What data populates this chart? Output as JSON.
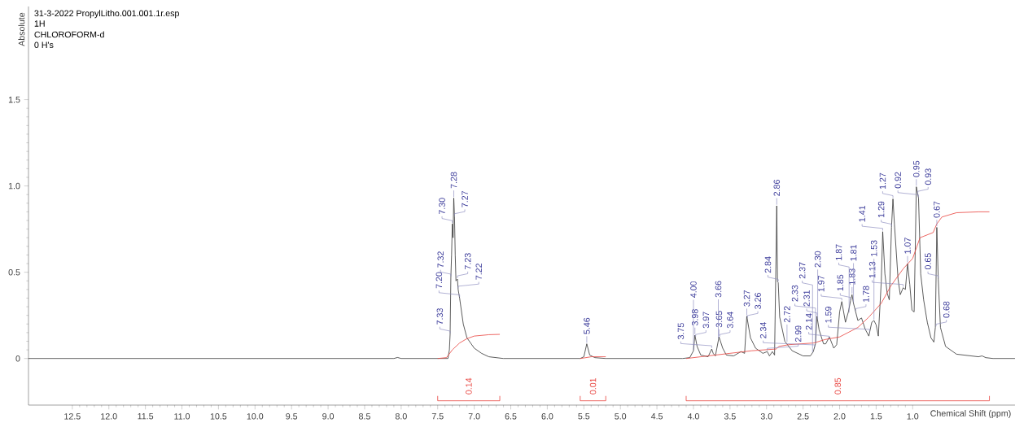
{
  "chart_data": {
    "type": "line",
    "xlabel": "Chemical Shift (ppm)",
    "ylabel": "Absolute",
    "xlim": [
      13.1,
      -0.4
    ],
    "ylim": [
      -0.27,
      2.04
    ],
    "xticks": [
      {
        "value": 12.5,
        "label": "12.5"
      },
      {
        "value": 12,
        "label": "12.0"
      },
      {
        "value": 11.5,
        "label": "11.5"
      },
      {
        "value": 11,
        "label": "11.0"
      },
      {
        "value": 10.5,
        "label": "10.5"
      },
      {
        "value": 10,
        "label": "10.0"
      },
      {
        "value": 9.5,
        "label": "9.5"
      },
      {
        "value": 9,
        "label": "9.0"
      },
      {
        "value": 8.5,
        "label": "8.5"
      },
      {
        "value": 8,
        "label": "8.0"
      },
      {
        "value": 7.5,
        "label": "7.5"
      },
      {
        "value": 7,
        "label": "7.0"
      },
      {
        "value": 6.5,
        "label": "6.5"
      },
      {
        "value": 6,
        "label": "6.0"
      },
      {
        "value": 5.5,
        "label": "5.5"
      },
      {
        "value": 5,
        "label": "5.0"
      },
      {
        "value": 4.5,
        "label": "4.5"
      },
      {
        "value": 4,
        "label": "4.0"
      },
      {
        "value": 3.5,
        "label": "3.5"
      },
      {
        "value": 3,
        "label": "3.0"
      },
      {
        "value": 2.5,
        "label": "2.5"
      },
      {
        "value": 2,
        "label": "2.0"
      },
      {
        "value": 1.5,
        "label": "1.5"
      },
      {
        "value": 1,
        "label": "1.0"
      }
    ],
    "yticks": [
      {
        "value": 0,
        "label": "0"
      },
      {
        "value": 0.5,
        "label": "0.5"
      },
      {
        "value": 1,
        "label": "1.0"
      },
      {
        "value": 1.5,
        "label": "1.5"
      }
    ],
    "grid": false,
    "marker": "none",
    "line_style": "solid",
    "series": [
      {
        "type": "line",
        "color": "#333333",
        "x": [
          13.1,
          8.1,
          8.05,
          8.0,
          7.5,
          7.36,
          7.34,
          7.33,
          7.32,
          7.31,
          7.3,
          7.29,
          7.28,
          7.27,
          7.26,
          7.25,
          7.23,
          7.22,
          7.2,
          7.15,
          7.1,
          7.0,
          6.9,
          6.8,
          6.6,
          5.55,
          5.5,
          5.46,
          5.42,
          5.35,
          5.2,
          4.15,
          4.05,
          4.0,
          3.98,
          3.95,
          3.9,
          3.8,
          3.75,
          3.73,
          3.7,
          3.65,
          3.6,
          3.55,
          3.45,
          3.35,
          3.3,
          3.27,
          3.22,
          3.15,
          3.05,
          2.99,
          2.96,
          2.92,
          2.89,
          2.86,
          2.85,
          2.84,
          2.82,
          2.75,
          2.65,
          2.5,
          2.4,
          2.36,
          2.33,
          2.31,
          2.28,
          2.22,
          2.19,
          2.14,
          2.08,
          2.04,
          2.0,
          1.97,
          1.92,
          1.88,
          1.85,
          1.83,
          1.81,
          1.78,
          1.75,
          1.7,
          1.65,
          1.6,
          1.56,
          1.53,
          1.5,
          1.47,
          1.43,
          1.41,
          1.38,
          1.35,
          1.32,
          1.29,
          1.27,
          1.25,
          1.2,
          1.17,
          1.13,
          1.1,
          1.07,
          1.04,
          1.01,
          0.98,
          0.95,
          0.93,
          0.92,
          0.89,
          0.85,
          0.8,
          0.75,
          0.71,
          0.69,
          0.67,
          0.65,
          0.62,
          0.55,
          0.4,
          0.1,
          0.05,
          0.0,
          -0.1,
          -0.4
        ],
        "values": [
          0,
          0,
          0.006,
          0,
          0,
          0,
          0.05,
          0.14,
          0.47,
          0.6,
          0.78,
          0.7,
          0.93,
          0.82,
          0.6,
          0.45,
          0.46,
          0.4,
          0.35,
          0.2,
          0.12,
          0.06,
          0.03,
          0.01,
          0,
          0,
          0.01,
          0.085,
          0.02,
          0.005,
          0,
          0,
          0.005,
          0.045,
          0.135,
          0.07,
          0.02,
          0.01,
          0.055,
          0.03,
          0.015,
          0.125,
          0.06,
          0.02,
          0.015,
          0.04,
          0.03,
          0.245,
          0.12,
          0.06,
          0.03,
          0.04,
          0.015,
          0.04,
          0.02,
          0.885,
          0.445,
          0.44,
          0.24,
          0.1,
          0.045,
          0.015,
          0.015,
          0.04,
          0.085,
          0.245,
          0.165,
          0.085,
          0.085,
          0.125,
          0.06,
          0.08,
          0.27,
          0.33,
          0.21,
          0.27,
          0.335,
          0.37,
          0.32,
          0.27,
          0.22,
          0.235,
          0.17,
          0.13,
          0.21,
          0.22,
          0.195,
          0.13,
          0.445,
          0.735,
          0.49,
          0.38,
          0.34,
          0.76,
          0.925,
          0.78,
          0.46,
          0.37,
          0.41,
          0.4,
          0.55,
          0.43,
          0.28,
          0.27,
          0.995,
          0.95,
          0.93,
          0.49,
          0.34,
          0.21,
          0.12,
          0.095,
          0.18,
          0.76,
          0.46,
          0.18,
          0.07,
          0.025,
          0.01,
          0.015,
          0.005,
          0,
          0
        ]
      },
      {
        "type": "line",
        "color": "#e8413c",
        "x": [
          7.5,
          7.38,
          7.3,
          7.2,
          7.1,
          7.0,
          6.8,
          6.65
        ],
        "values": [
          0,
          0.005,
          0.05,
          0.09,
          0.115,
          0.13,
          0.138,
          0.14
        ]
      },
      {
        "type": "line",
        "color": "#e8413c",
        "x": [
          5.55,
          5.5,
          5.4,
          5.2
        ],
        "values": [
          0,
          0.003,
          0.01,
          0.01
        ]
      },
      {
        "type": "line",
        "name": "0.14",
        "color": "#e8413c",
        "x": [
          7.5,
          7.5,
          6.65,
          6.65
        ],
        "values": [
          -0.217,
          -0.245,
          -0.245,
          -0.217
        ]
      },
      {
        "type": "line",
        "name": "0.01",
        "color": "#e8413c",
        "x": [
          5.55,
          5.55,
          5.2,
          5.2
        ],
        "values": [
          -0.217,
          -0.245,
          -0.245,
          -0.217
        ]
      },
      {
        "type": "line",
        "name": "0.85",
        "color": "#e8413c",
        "x": [
          4.1,
          4.1,
          -0.05,
          -0.05
        ],
        "values": [
          -0.217,
          -0.245,
          -0.245,
          -0.217
        ]
      },
      {
        "type": "line",
        "color": "#e8413c",
        "x": [
          4.1,
          3.9,
          3.5,
          3.2,
          2.87,
          2.83,
          2.7,
          2.35,
          2.2,
          2.0,
          1.75,
          1.6,
          1.43,
          1.3,
          1.13,
          1.0,
          0.9,
          0.72,
          0.67,
          0.6,
          0.4,
          0.1,
          -0.05
        ],
        "values": [
          0,
          0.01,
          0.03,
          0.045,
          0.055,
          0.07,
          0.08,
          0.09,
          0.11,
          0.125,
          0.18,
          0.24,
          0.32,
          0.42,
          0.52,
          0.58,
          0.7,
          0.73,
          0.78,
          0.82,
          0.845,
          0.85,
          0.85
        ]
      }
    ],
    "annotations": [
      "31-3-2022 PropylLitho.001.001.1r.esp",
      "1H",
      "CHLOROFORM-d",
      "0 H's",
      {
        "text": "7.33",
        "x": 7.33,
        "y": 0.14
      },
      {
        "text": "7.32",
        "x": 7.32,
        "y": 0.47
      },
      {
        "text": "7.30",
        "x": 7.3,
        "y": 0.78
      },
      {
        "text": "7.28",
        "x": 7.28,
        "y": 0.93
      },
      {
        "text": "7.27",
        "x": 7.27,
        "y": 0.82
      },
      {
        "text": "7.23",
        "x": 7.23,
        "y": 0.46
      },
      {
        "text": "7.22",
        "x": 7.22,
        "y": 0.4
      },
      {
        "text": "7.20",
        "x": 7.2,
        "y": 0.35
      },
      {
        "text": "5.46",
        "x": 5.46,
        "y": 0.085
      },
      {
        "text": "4.00",
        "x": 4.0,
        "y": 0.045
      },
      {
        "text": "3.98",
        "x": 3.98,
        "y": 0.135
      },
      {
        "text": "3.97",
        "x": 3.97,
        "y": 0.12
      },
      {
        "text": "3.75",
        "x": 3.75,
        "y": 0.055
      },
      {
        "text": "3.66",
        "x": 3.66,
        "y": 0.11
      },
      {
        "text": "3.65",
        "x": 3.65,
        "y": 0.125
      },
      {
        "text": "3.64",
        "x": 3.64,
        "y": 0.12
      },
      {
        "text": "3.27",
        "x": 3.27,
        "y": 0.245
      },
      {
        "text": "3.26",
        "x": 3.26,
        "y": 0.23
      },
      {
        "text": "2.99",
        "x": 2.99,
        "y": 0.04
      },
      {
        "text": "2.86",
        "x": 2.86,
        "y": 0.885
      },
      {
        "text": "2.84",
        "x": 2.84,
        "y": 0.44
      },
      {
        "text": "2.72",
        "x": 2.72,
        "y": 0.09
      },
      {
        "text": "2.37",
        "x": 2.37,
        "y": 0.03
      },
      {
        "text": "2.34",
        "x": 2.34,
        "y": 0.06
      },
      {
        "text": "2.33",
        "x": 2.33,
        "y": 0.085
      },
      {
        "text": "2.31",
        "x": 2.31,
        "y": 0.245
      },
      {
        "text": "2.30",
        "x": 2.3,
        "y": 0.22
      },
      {
        "text": "2.14",
        "x": 2.14,
        "y": 0.11
      },
      {
        "text": "1.97",
        "x": 1.97,
        "y": 0.33
      },
      {
        "text": "1.87",
        "x": 1.87,
        "y": 0.26
      },
      {
        "text": "1.85",
        "x": 1.85,
        "y": 0.335
      },
      {
        "text": "1.83",
        "x": 1.83,
        "y": 0.37
      },
      {
        "text": "1.81",
        "x": 1.81,
        "y": 0.32
      },
      {
        "text": "1.78",
        "x": 1.78,
        "y": 0.27
      },
      {
        "text": "1.59",
        "x": 1.59,
        "y": 0.15
      },
      {
        "text": "1.53",
        "x": 1.53,
        "y": 0.22
      },
      {
        "text": "1.41",
        "x": 1.41,
        "y": 0.735
      },
      {
        "text": "1.29",
        "x": 1.29,
        "y": 0.76
      },
      {
        "text": "1.27",
        "x": 1.27,
        "y": 0.925
      },
      {
        "text": "1.13",
        "x": 1.13,
        "y": 0.41
      },
      {
        "text": "1.07",
        "x": 1.07,
        "y": 0.55
      },
      {
        "text": "0.95",
        "x": 0.95,
        "y": 0.995
      },
      {
        "text": "0.93",
        "x": 0.93,
        "y": 0.95
      },
      {
        "text": "0.92",
        "x": 0.92,
        "y": 0.93
      },
      {
        "text": "0.68",
        "x": 0.68,
        "y": 0.18
      },
      {
        "text": "0.67",
        "x": 0.67,
        "y": 0.76
      },
      {
        "text": "0.65",
        "x": 0.65,
        "y": 0.46
      }
    ]
  }
}
